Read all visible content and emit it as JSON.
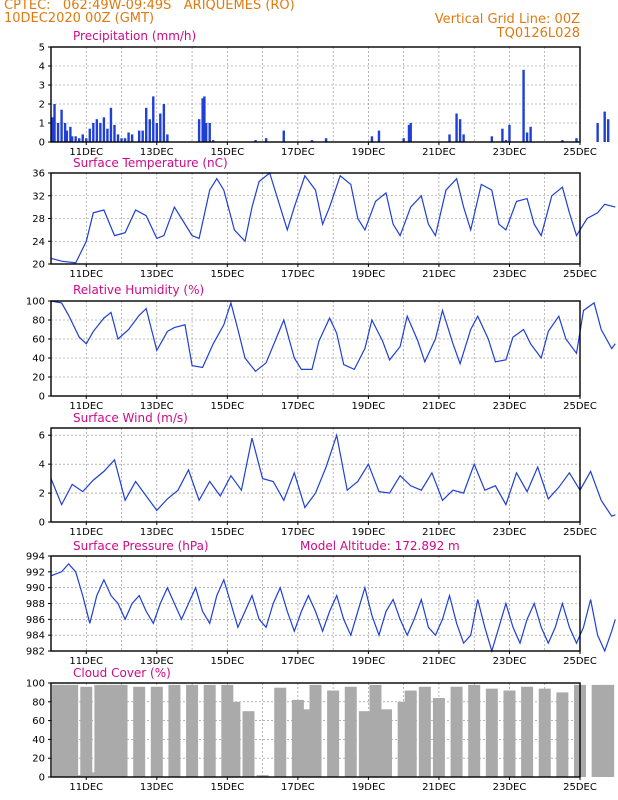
{
  "header": {
    "line1_left": "CPTEC:   062:49W-09:49S   ARIQUEMES (RO)",
    "line2_left": "10DEC2020 00Z (GMT)",
    "line1_right": "Vertical Grid Line: 00Z",
    "line2_right": "TQ0126L028"
  },
  "colors": {
    "header": "#e07a10",
    "title": "#cc0a8a",
    "series": "#1f3fd6",
    "cloud": "#aaaaaa",
    "grid": "#888888"
  },
  "chart_data": [
    {
      "type": "bar",
      "title": "Precipitation (mm/h)",
      "xlabels": [
        "11DEC",
        "13DEC",
        "15DEC",
        "17DEC",
        "19DEC",
        "21DEC",
        "23DEC",
        "25DEC"
      ],
      "ylim": [
        0,
        5
      ],
      "yticks": [
        0,
        1,
        2,
        3,
        4,
        5
      ],
      "x_days_from_10DEC_00Z": [
        0.05,
        0.1,
        0.2,
        0.3,
        0.4,
        0.45,
        0.55,
        0.6,
        0.7,
        0.8,
        0.9,
        1.0,
        1.1,
        1.2,
        1.3,
        1.4,
        1.5,
        1.6,
        1.7,
        1.8,
        1.9,
        2.0,
        2.1,
        2.2,
        2.3,
        2.5,
        2.6,
        2.7,
        2.8,
        2.9,
        3.0,
        3.1,
        3.2,
        3.3,
        4.2,
        4.3,
        4.35,
        4.4,
        4.5,
        4.6,
        5.8,
        6.1,
        6.6,
        7.4,
        7.8,
        9.1,
        9.3,
        10.0,
        10.15,
        10.2,
        11.3,
        11.5,
        11.6,
        11.7,
        12.5,
        12.8,
        12.9,
        13.0,
        13.4,
        13.5,
        13.6,
        14.5,
        14.9,
        15.5,
        15.7,
        15.8
      ],
      "values": [
        1.3,
        2.0,
        1.0,
        1.7,
        1.0,
        0.6,
        0.8,
        0.3,
        0.3,
        0.2,
        0.4,
        0.2,
        0.7,
        1.0,
        1.2,
        1.0,
        1.3,
        0.7,
        1.8,
        0.9,
        0.4,
        0.2,
        0.2,
        0.5,
        0.4,
        0.6,
        0.6,
        1.8,
        1.2,
        2.4,
        1.0,
        1.5,
        2.0,
        0.4,
        1.2,
        2.3,
        2.4,
        1.0,
        1.0,
        0.1,
        0.1,
        0.2,
        0.6,
        0.1,
        0.2,
        0.3,
        0.6,
        0.2,
        0.9,
        1.0,
        0.4,
        1.5,
        1.2,
        0.4,
        0.3,
        0.7,
        0.1,
        0.9,
        3.8,
        0.5,
        0.8,
        0.1,
        0.2,
        1.0,
        1.6,
        1.2
      ]
    },
    {
      "type": "line",
      "title": "Surface Temperature (nC)",
      "xlabels": [
        "11DEC",
        "13DEC",
        "15DEC",
        "17DEC",
        "19DEC",
        "21DEC",
        "23DEC",
        "25DEC"
      ],
      "ylim": [
        20,
        36
      ],
      "yticks": [
        20,
        24,
        28,
        32,
        36
      ],
      "x_days_from_10DEC_00Z": [
        0,
        0.3,
        0.7,
        1.0,
        1.2,
        1.5,
        1.8,
        2.1,
        2.4,
        2.7,
        3.0,
        3.2,
        3.5,
        3.7,
        4.0,
        4.2,
        4.5,
        4.7,
        4.9,
        5.2,
        5.5,
        5.7,
        5.9,
        6.2,
        6.5,
        6.7,
        6.9,
        7.2,
        7.5,
        7.7,
        7.9,
        8.2,
        8.5,
        8.7,
        8.9,
        9.2,
        9.5,
        9.7,
        9.9,
        10.2,
        10.5,
        10.7,
        10.9,
        11.2,
        11.5,
        11.7,
        11.9,
        12.2,
        12.5,
        12.7,
        12.9,
        13.2,
        13.5,
        13.7,
        13.9,
        14.2,
        14.5,
        14.7,
        14.9,
        15.2,
        15.5,
        15.7,
        16.0
      ],
      "values": [
        21,
        20.5,
        20.2,
        24,
        29,
        29.5,
        25,
        25.5,
        29.5,
        28.5,
        24.5,
        25,
        30,
        28,
        25,
        24.5,
        33,
        35,
        33,
        26,
        24,
        30,
        34.5,
        36,
        30,
        26,
        30,
        35.5,
        33,
        27,
        30,
        35.5,
        34,
        28,
        26,
        31,
        32.5,
        27,
        25,
        30,
        32,
        27,
        25,
        33,
        35,
        30,
        26,
        34,
        33,
        27,
        26,
        31,
        31.5,
        27,
        25,
        32,
        33.5,
        29,
        25,
        28,
        29,
        30.5,
        30
      ]
    },
    {
      "type": "line",
      "title": "Relative Humidity (%)",
      "xlabels": [
        "11DEC",
        "13DEC",
        "15DEC",
        "17DEC",
        "19DEC",
        "21DEC",
        "23DEC",
        "25DEC"
      ],
      "ylim": [
        0,
        100
      ],
      "yticks": [
        0,
        20,
        40,
        60,
        80,
        100
      ],
      "x_days_from_10DEC_00Z": [
        0,
        0.3,
        0.5,
        0.8,
        1.0,
        1.2,
        1.5,
        1.7,
        1.9,
        2.2,
        2.5,
        2.7,
        3.0,
        3.3,
        3.5,
        3.8,
        4.0,
        4.3,
        4.6,
        4.9,
        5.1,
        5.3,
        5.5,
        5.8,
        6.1,
        6.4,
        6.6,
        6.9,
        7.1,
        7.4,
        7.6,
        7.9,
        8.1,
        8.3,
        8.6,
        8.9,
        9.1,
        9.4,
        9.6,
        9.9,
        10.1,
        10.4,
        10.6,
        10.9,
        11.1,
        11.4,
        11.6,
        11.9,
        12.1,
        12.4,
        12.6,
        12.9,
        13.1,
        13.4,
        13.6,
        13.9,
        14.1,
        14.4,
        14.6,
        14.9,
        15.1,
        15.4,
        15.6,
        15.9,
        16.0
      ],
      "values": [
        100,
        98,
        85,
        62,
        55,
        68,
        82,
        88,
        60,
        70,
        85,
        92,
        48,
        68,
        72,
        75,
        32,
        30,
        55,
        75,
        98,
        70,
        40,
        26,
        35,
        62,
        80,
        40,
        28,
        28,
        58,
        82,
        66,
        33,
        28,
        50,
        80,
        58,
        38,
        52,
        84,
        58,
        36,
        60,
        90,
        55,
        34,
        70,
        84,
        60,
        36,
        38,
        62,
        70,
        55,
        40,
        68,
        84,
        60,
        45,
        90,
        98,
        70,
        50,
        55
      ]
    },
    {
      "type": "line",
      "title": "Surface Wind (m/s)",
      "xlabels": [
        "11DEC",
        "13DEC",
        "15DEC",
        "17DEC",
        "19DEC",
        "21DEC",
        "23DEC",
        "25DEC"
      ],
      "ylim": [
        0,
        6.5
      ],
      "yticks": [
        0,
        2,
        4,
        6
      ],
      "x_days_from_10DEC_00Z": [
        0,
        0.3,
        0.6,
        0.9,
        1.2,
        1.5,
        1.8,
        2.1,
        2.4,
        2.7,
        3.0,
        3.3,
        3.6,
        3.9,
        4.2,
        4.5,
        4.8,
        5.1,
        5.4,
        5.7,
        6.0,
        6.3,
        6.6,
        6.9,
        7.2,
        7.5,
        7.8,
        8.1,
        8.4,
        8.7,
        9.0,
        9.3,
        9.6,
        9.9,
        10.2,
        10.5,
        10.8,
        11.1,
        11.4,
        11.7,
        12.0,
        12.3,
        12.6,
        12.9,
        13.2,
        13.5,
        13.8,
        14.1,
        14.4,
        14.7,
        15.0,
        15.3,
        15.6,
        15.9,
        16.0
      ],
      "values": [
        3.0,
        1.2,
        2.6,
        2.1,
        2.9,
        3.5,
        4.3,
        1.5,
        2.8,
        1.8,
        0.8,
        1.6,
        2.2,
        3.6,
        1.5,
        2.8,
        1.8,
        3.2,
        2.2,
        5.8,
        3.0,
        2.8,
        1.5,
        3.4,
        1.0,
        2.0,
        3.8,
        6.0,
        2.2,
        2.8,
        4.0,
        2.1,
        2.0,
        3.2,
        2.5,
        2.2,
        3.4,
        1.5,
        2.2,
        2.0,
        4.0,
        2.2,
        2.5,
        1.2,
        3.4,
        2.1,
        3.8,
        1.6,
        2.4,
        3.4,
        2.2,
        3.5,
        1.5,
        0.4,
        0.5
      ]
    },
    {
      "type": "line",
      "title": "Surface Pressure (hPa)",
      "annotation": "Model Altitude: 172.892 m",
      "xlabels": [
        "11DEC",
        "13DEC",
        "15DEC",
        "17DEC",
        "19DEC",
        "21DEC",
        "23DEC",
        "25DEC"
      ],
      "ylim": [
        982,
        994
      ],
      "yticks": [
        982,
        984,
        986,
        988,
        990,
        992,
        994
      ],
      "x_days_from_10DEC_00Z": [
        0,
        0.3,
        0.5,
        0.7,
        0.9,
        1.1,
        1.3,
        1.5,
        1.7,
        1.9,
        2.1,
        2.3,
        2.5,
        2.7,
        2.9,
        3.1,
        3.3,
        3.5,
        3.7,
        3.9,
        4.1,
        4.3,
        4.5,
        4.7,
        4.9,
        5.1,
        5.3,
        5.5,
        5.7,
        5.9,
        6.1,
        6.3,
        6.5,
        6.7,
        6.9,
        7.1,
        7.3,
        7.5,
        7.7,
        7.9,
        8.1,
        8.3,
        8.5,
        8.7,
        8.9,
        9.1,
        9.3,
        9.5,
        9.7,
        9.9,
        10.1,
        10.3,
        10.5,
        10.7,
        10.9,
        11.1,
        11.3,
        11.5,
        11.7,
        11.9,
        12.1,
        12.3,
        12.5,
        12.7,
        12.9,
        13.1,
        13.3,
        13.5,
        13.7,
        13.9,
        14.1,
        14.3,
        14.5,
        14.7,
        14.9,
        15.1,
        15.3,
        15.5,
        15.7,
        15.9,
        16.0
      ],
      "values": [
        991.5,
        992,
        993,
        992,
        989,
        985.5,
        989,
        991,
        989,
        988,
        986,
        988,
        989,
        987,
        985.5,
        988,
        990,
        988,
        986,
        988,
        990,
        987,
        985.5,
        989,
        991,
        988,
        985,
        987,
        989,
        986,
        985,
        988,
        990,
        987,
        984.5,
        987,
        989,
        987,
        984.5,
        987,
        989,
        986,
        984,
        987,
        990,
        986.5,
        984,
        987,
        988.5,
        986,
        984,
        986,
        988.5,
        985,
        984,
        986,
        989,
        985.5,
        983,
        984,
        988.5,
        985,
        982,
        985,
        988,
        985,
        983,
        986,
        988,
        985,
        983,
        985,
        988,
        985,
        983,
        985,
        988.5,
        984,
        982,
        984.5,
        986
      ]
    },
    {
      "type": "bar",
      "title": "Cloud Cover (%)",
      "xlabels": [
        "11DEC",
        "13DEC",
        "15DEC",
        "17DEC",
        "19DEC",
        "21DEC",
        "23DEC",
        "25DEC"
      ],
      "ylim": [
        0,
        100
      ],
      "yticks": [
        0,
        20,
        40,
        60,
        80,
        100
      ],
      "x_days_from_10DEC_00Z": [
        0.2,
        0.4,
        0.6,
        0.8,
        1.0,
        1.2,
        1.4,
        1.6,
        1.8,
        2.0,
        2.5,
        3.0,
        3.5,
        4.0,
        4.5,
        5.0,
        5.2,
        5.6,
        6.0,
        6.5,
        7.0,
        7.2,
        7.5,
        8.0,
        8.5,
        8.9,
        9.2,
        9.5,
        10.0,
        10.2,
        10.6,
        11.0,
        11.5,
        12.0,
        12.5,
        13.0,
        13.5,
        14.0,
        14.5,
        15.0,
        15.5,
        15.8
      ],
      "values": [
        98,
        98,
        98,
        2,
        96,
        5,
        98,
        98,
        98,
        98,
        96,
        96,
        98,
        98,
        98,
        98,
        80,
        70,
        2,
        95,
        82,
        72,
        98,
        92,
        96,
        70,
        98,
        72,
        80,
        92,
        96,
        84,
        96,
        98,
        94,
        92,
        96,
        94,
        90,
        98,
        98,
        98
      ]
    }
  ]
}
